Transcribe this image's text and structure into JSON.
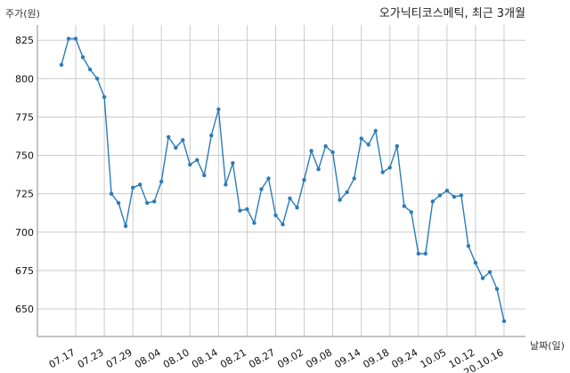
{
  "chart_data": {
    "type": "line",
    "title": "오가닉티코스메틱, 최근 3개월",
    "xlabel": "날짜(일)",
    "ylabel": "주가(원)",
    "ylim": [
      632,
      835
    ],
    "yticks": [
      650,
      675,
      700,
      725,
      750,
      775,
      800,
      825
    ],
    "grid": true,
    "x_tick_labels": [
      "07.17",
      "07.23",
      "07.29",
      "08.04",
      "08.10",
      "08.14",
      "08.21",
      "08.27",
      "09.02",
      "09.08",
      "09.14",
      "09.18",
      "09.24",
      "10.05",
      "10.12",
      "20.10.16"
    ],
    "x_tick_positions": [
      2,
      6,
      10,
      14,
      18,
      22,
      26,
      30,
      34,
      38,
      42,
      46,
      50,
      54,
      58,
      62
    ],
    "series": [
      {
        "color": "#2b7bb9",
        "values": [
          809,
          826,
          826,
          814,
          806,
          800,
          788,
          725,
          719,
          704,
          729,
          731,
          719,
          720,
          733,
          762,
          755,
          760,
          744,
          747,
          737,
          763,
          780,
          731,
          745,
          714,
          715,
          706,
          728,
          735,
          711,
          705,
          722,
          716,
          734,
          753,
          741,
          756,
          752,
          721,
          726,
          735,
          761,
          757,
          766,
          739,
          742,
          756,
          717,
          713,
          686,
          686,
          720,
          724,
          727,
          723,
          724,
          691,
          680,
          670,
          674,
          663,
          642
        ]
      }
    ]
  }
}
